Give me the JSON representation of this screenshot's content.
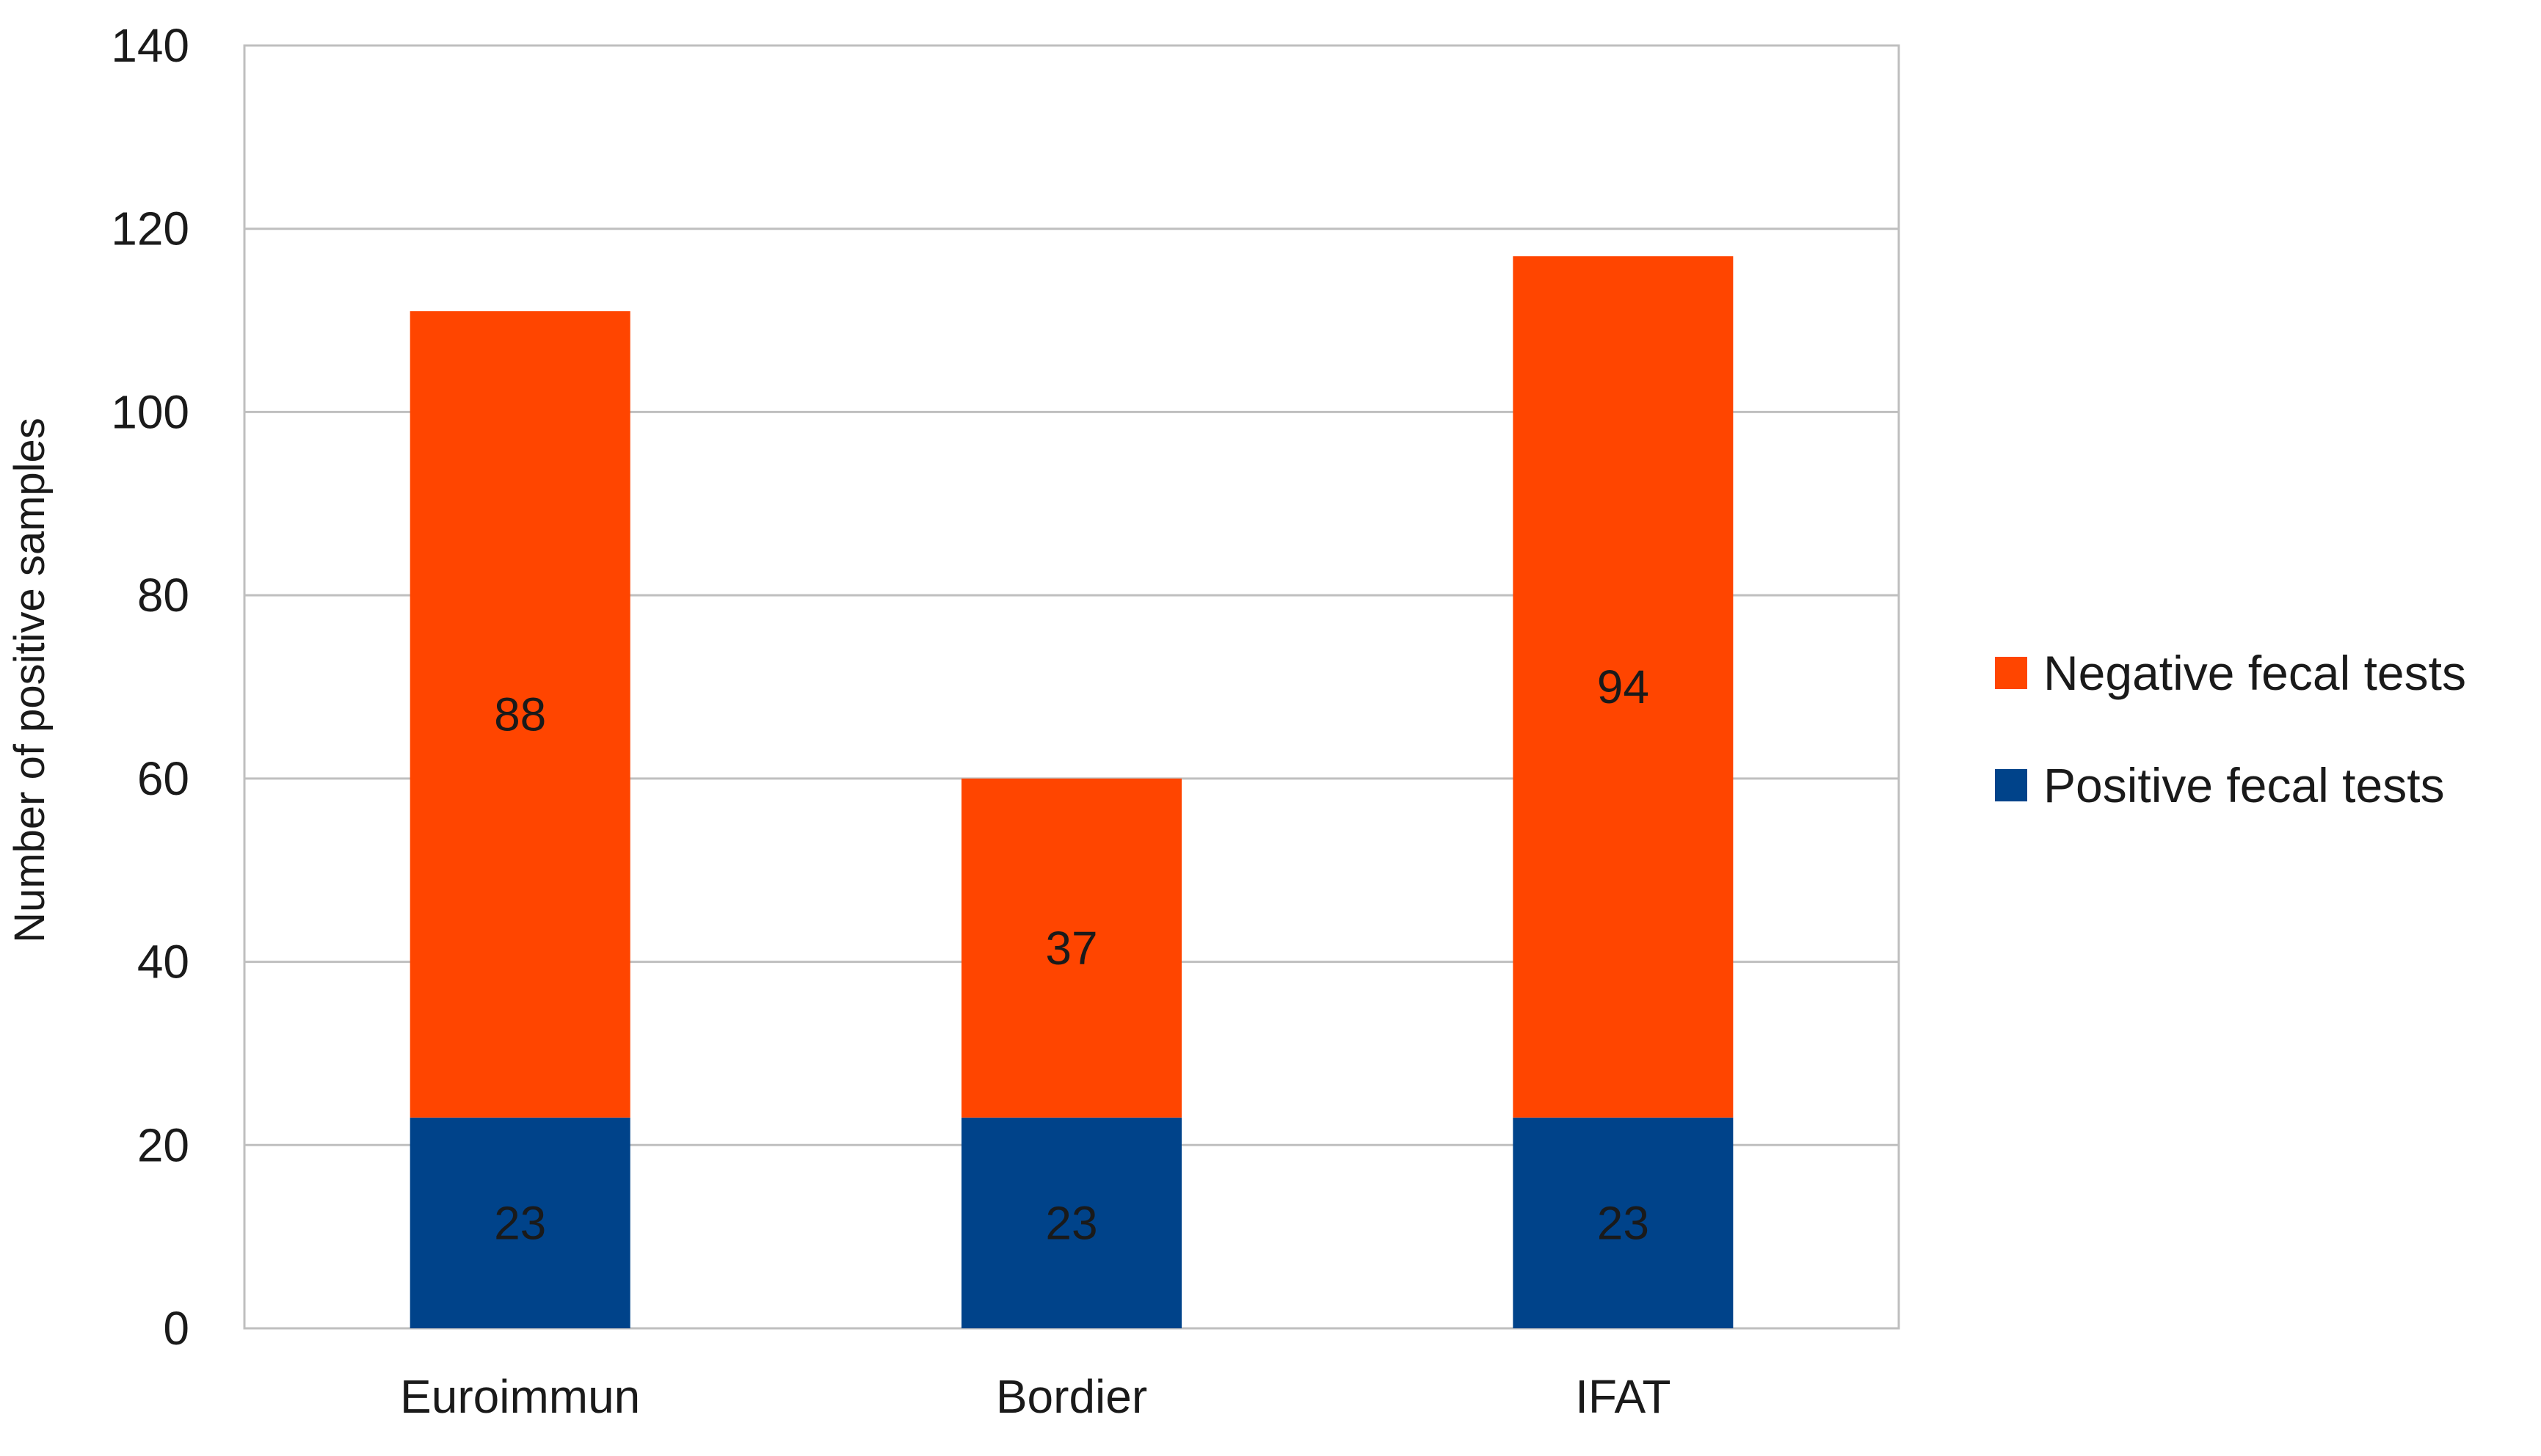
{
  "chart_data": {
    "type": "bar",
    "stacked": true,
    "title": "",
    "xlabel": "",
    "ylabel": "Number of positive samples",
    "ylim": [
      0,
      140
    ],
    "yticks": [
      0,
      20,
      40,
      60,
      80,
      100,
      120,
      140
    ],
    "grid": true,
    "legend_position": "right",
    "categories": [
      "Euroimmun",
      "Bordier",
      "IFAT"
    ],
    "series": [
      {
        "name": "Positive fecal tests",
        "color": "#00438a",
        "values": [
          23,
          23,
          23
        ]
      },
      {
        "name": "Negative fecal tests",
        "color": "#ff4500",
        "values": [
          88,
          37,
          94
        ]
      }
    ],
    "legend_order": [
      "Negative fecal tests",
      "Positive fecal tests"
    ]
  }
}
